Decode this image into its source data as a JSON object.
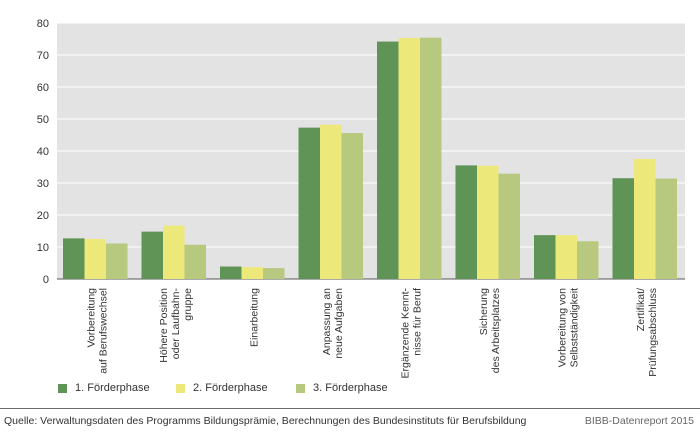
{
  "chart_data": {
    "type": "bar",
    "categories": [
      [
        "Vorbereitung",
        "auf Berufswechsel"
      ],
      [
        "Höhere Position",
        "oder Laufbahn-",
        "gruppe"
      ],
      [
        "Einarbeitung"
      ],
      [
        "Anpassung an",
        "neue Aufgaben"
      ],
      [
        "Ergänzende Kennt-",
        "nisse für Beruf"
      ],
      [
        "Sicherung",
        "des Arbeitsplatzes"
      ],
      [
        "Vorbereitung von",
        "Selbstständigkeit"
      ],
      [
        "Zertifikat/",
        "Prüfungsabschluss"
      ]
    ],
    "series": [
      {
        "name": "1. Förderphase",
        "color": "#5f9456",
        "values": [
          12.7,
          14.8,
          3.9,
          47.3,
          74.2,
          35.5,
          13.7,
          31.5
        ]
      },
      {
        "name": "2. Förderphase",
        "color": "#ede87a",
        "values": [
          12.5,
          16.7,
          3.7,
          48.2,
          75.3,
          35.4,
          13.7,
          37.5
        ]
      },
      {
        "name": "3. Förderphase",
        "color": "#b6c97e",
        "values": [
          11.1,
          10.7,
          3.4,
          45.6,
          75.4,
          32.9,
          11.8,
          31.4
        ]
      }
    ],
    "ylim": [
      0,
      80
    ],
    "yticks": [
      0,
      10,
      20,
      30,
      40,
      50,
      60,
      70,
      80
    ],
    "grid": true,
    "legend_position": "bottom",
    "background": "#e3e3e3"
  },
  "footer": {
    "source": "Quelle: Verwaltungsdaten des Programms Bildungsprämie, Berechnungen des Bundesinstituts für Berufsbildung",
    "credit": "BIBB-Datenreport 2015"
  }
}
